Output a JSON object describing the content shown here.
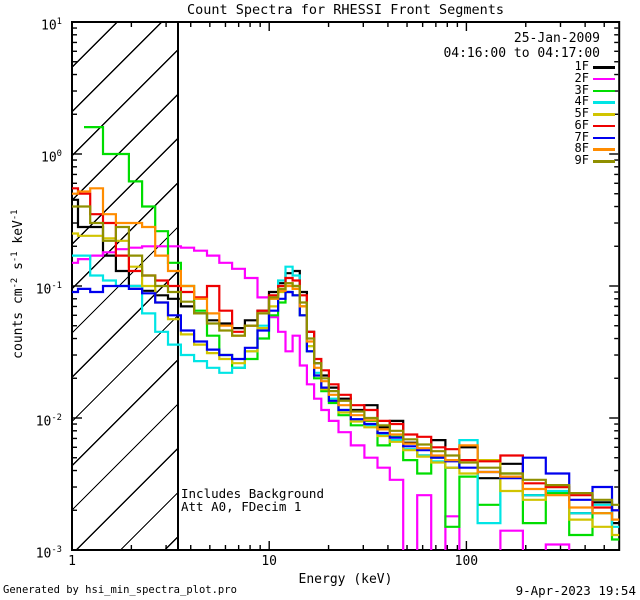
{
  "chart_data": {
    "type": "line",
    "subtype": "step-histogram",
    "scale": "log-log",
    "title": "Count Spectra for RHESSI Front Segments",
    "xlabel": "Energy (keV)",
    "ylabel": "counts cm^-2 s^-1 keV^-1",
    "xlim": [
      1,
      600
    ],
    "ylim": [
      0.001,
      10
    ],
    "x_ticks": [
      "1",
      "10",
      "100"
    ],
    "y_ticks": [
      "10^1",
      "10^0",
      "10^-1",
      "10^-2",
      "10^-3"
    ],
    "grid": false,
    "legend_position": "top-right-inside",
    "hatch_region_kev": [
      1,
      3.45
    ],
    "energies_kev": [
      1.0,
      1.15,
      1.33,
      1.55,
      1.8,
      2.1,
      2.45,
      2.85,
      3.3,
      3.85,
      4.5,
      5.2,
      6.0,
      7.0,
      8.1,
      9.4,
      10.6,
      11.6,
      12.6,
      13.7,
      14.9,
      16.2,
      17.6,
      19.2,
      21,
      24,
      28,
      33,
      38,
      44,
      52,
      61,
      72,
      85,
      100,
      130,
      170,
      220,
      290,
      380,
      500,
      600
    ],
    "series": [
      {
        "name": "1F",
        "color": "#000000",
        "values": [
          0.45,
          0.28,
          0.28,
          0.17,
          0.13,
          0.1,
          0.092,
          0.085,
          0.08,
          0.07,
          0.062,
          0.055,
          0.052,
          0.048,
          0.055,
          0.065,
          0.09,
          0.105,
          0.125,
          0.13,
          0.09,
          0.045,
          0.026,
          0.021,
          0.017,
          0.014,
          0.0115,
          0.0125,
          0.0085,
          0.0095,
          0.0065,
          0.0052,
          0.0068,
          0.0042,
          0.006,
          0.0035,
          0.0045,
          0.0026,
          0.003,
          0.0019,
          0.0023,
          0.0016
        ]
      },
      {
        "name": "2F",
        "color": "#ff00ff",
        "values": [
          0.15,
          0.16,
          0.17,
          0.18,
          0.19,
          0.195,
          0.2,
          0.2,
          0.2,
          0.195,
          0.185,
          0.17,
          0.15,
          0.135,
          0.115,
          0.082,
          0.058,
          0.045,
          0.032,
          0.042,
          0.025,
          0.018,
          0.014,
          0.0115,
          0.0095,
          0.0078,
          0.0062,
          0.005,
          0.0042,
          0.0034,
          0.0009,
          0.0026,
          0.0009,
          0.0018,
          0.0009,
          0.0009,
          0.0014,
          0.0009,
          0.0011,
          0.0009,
          0.0009,
          0.0009
        ]
      },
      {
        "name": "3F",
        "color": "#00dd00",
        "values": [
          null,
          1.6,
          1.6,
          1.0,
          1.0,
          0.62,
          0.4,
          0.26,
          0.15,
          0.1,
          0.065,
          0.042,
          0.03,
          0.024,
          0.028,
          0.04,
          0.06,
          0.075,
          0.09,
          0.085,
          0.06,
          0.032,
          0.02,
          0.016,
          0.013,
          0.0105,
          0.0088,
          0.0095,
          0.0062,
          0.0072,
          0.0048,
          0.0038,
          0.005,
          0.0015,
          0.0036,
          0.0022,
          0.0038,
          0.0016,
          0.0027,
          0.0013,
          0.0019,
          0.0012
        ]
      },
      {
        "name": "4F",
        "color": "#00e5e5",
        "values": [
          0.17,
          0.17,
          0.12,
          0.11,
          0.1,
          0.1,
          0.062,
          0.045,
          0.036,
          0.03,
          0.027,
          0.024,
          0.022,
          0.024,
          0.032,
          0.05,
          0.08,
          0.11,
          0.14,
          0.12,
          0.07,
          0.035,
          0.022,
          0.017,
          0.014,
          0.0115,
          0.0098,
          0.0088,
          0.0075,
          0.0068,
          0.0058,
          0.0052,
          0.0047,
          0.0042,
          0.0068,
          0.0016,
          0.0036,
          0.0026,
          0.0028,
          0.0019,
          0.0022,
          0.0015
        ]
      },
      {
        "name": "5F",
        "color": "#d1c400",
        "values": [
          0.25,
          0.24,
          0.24,
          0.23,
          0.22,
          0.14,
          0.1,
          0.075,
          0.056,
          0.043,
          0.036,
          0.031,
          0.028,
          0.026,
          0.032,
          0.048,
          0.07,
          0.09,
          0.105,
          0.1,
          0.07,
          0.035,
          0.021,
          0.0165,
          0.0135,
          0.011,
          0.0094,
          0.0085,
          0.0073,
          0.0066,
          0.0057,
          0.0051,
          0.0046,
          0.0042,
          0.0038,
          0.0048,
          0.0028,
          0.0024,
          0.003,
          0.0017,
          0.0015,
          0.0013
        ]
      },
      {
        "name": "6F",
        "color": "#ee0000",
        "values": [
          0.55,
          0.5,
          0.35,
          0.3,
          0.17,
          0.13,
          0.12,
          0.11,
          0.1,
          0.09,
          0.082,
          0.1,
          0.065,
          0.045,
          0.05,
          0.065,
          0.085,
          0.1,
          0.115,
          0.11,
          0.085,
          0.045,
          0.028,
          0.023,
          0.018,
          0.015,
          0.0125,
          0.0115,
          0.0095,
          0.009,
          0.0075,
          0.0072,
          0.006,
          0.0058,
          0.0048,
          0.0047,
          0.0052,
          0.0032,
          0.003,
          0.0026,
          0.0021,
          0.002
        ]
      },
      {
        "name": "7F",
        "color": "#0000ee",
        "values": [
          0.09,
          0.095,
          0.09,
          0.1,
          0.1,
          0.095,
          0.088,
          0.075,
          0.06,
          0.046,
          0.038,
          0.033,
          0.03,
          0.028,
          0.034,
          0.046,
          0.065,
          0.08,
          0.09,
          0.085,
          0.06,
          0.032,
          0.021,
          0.017,
          0.0135,
          0.0115,
          0.0098,
          0.009,
          0.0077,
          0.0071,
          0.0061,
          0.0057,
          0.005,
          0.0047,
          0.0042,
          0.0039,
          0.0035,
          0.005,
          0.0038,
          0.0024,
          0.003,
          0.002
        ]
      },
      {
        "name": "8F",
        "color": "#ff8c00",
        "values": [
          0.5,
          0.52,
          0.55,
          0.35,
          0.3,
          0.3,
          0.28,
          0.17,
          0.13,
          0.1,
          0.08,
          0.062,
          0.05,
          0.042,
          0.05,
          0.062,
          0.08,
          0.092,
          0.1,
          0.095,
          0.07,
          0.038,
          0.024,
          0.019,
          0.015,
          0.0125,
          0.0105,
          0.0096,
          0.0082,
          0.0075,
          0.0064,
          0.0059,
          0.0052,
          0.0048,
          0.0062,
          0.0039,
          0.0036,
          0.0029,
          0.0026,
          0.0021,
          0.0019,
          0.0017
        ]
      },
      {
        "name": "9F",
        "color": "#8f8f00",
        "values": [
          0.4,
          0.4,
          0.3,
          0.22,
          0.28,
          0.17,
          0.12,
          0.1,
          0.09,
          0.076,
          0.062,
          0.052,
          0.046,
          0.042,
          0.05,
          0.062,
          0.082,
          0.095,
          0.105,
          0.1,
          0.075,
          0.04,
          0.026,
          0.02,
          0.016,
          0.0135,
          0.0112,
          0.01,
          0.0088,
          0.008,
          0.0069,
          0.0063,
          0.0056,
          0.0052,
          0.0046,
          0.0042,
          0.0038,
          0.0034,
          0.0031,
          0.0027,
          0.0024,
          0.0022
        ]
      }
    ]
  },
  "legend": {
    "date": "25-Jan-2009",
    "time_range": "04:16:00 to 04:17:00"
  },
  "annotations": {
    "line1": "Includes Background",
    "line2": "Att A0, FDecim 1"
  },
  "footer": {
    "generated_by": "Generated by hsi_min_spectra_plot.pro",
    "timestamp": "9-Apr-2023 19:54"
  }
}
